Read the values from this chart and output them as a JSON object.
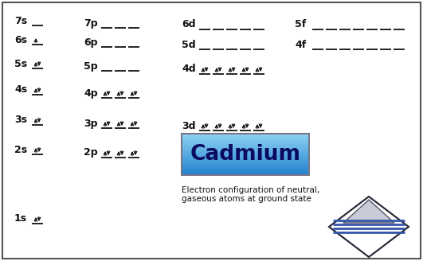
{
  "element_name": "Cadmium",
  "subtitle_line1": "Electron configuration of neutral,",
  "subtitle_line2": "gaseous atoms at ground state",
  "bg_color": "#ffffff",
  "border_color": "#555555",
  "arrow_color": "#111111",
  "s_orbitals": [
    {
      "label": "1s",
      "col": 0,
      "row": 0,
      "filled": 2
    },
    {
      "label": "2s",
      "col": 0,
      "row": 2,
      "filled": 2
    },
    {
      "label": "3s",
      "col": 0,
      "row": 4,
      "filled": 2
    },
    {
      "label": "4s",
      "col": 0,
      "row": 5,
      "filled": 2
    },
    {
      "label": "5s",
      "col": 0,
      "row": 6,
      "filled": 2
    },
    {
      "label": "6s",
      "col": 0,
      "row": 7,
      "filled": 1
    },
    {
      "label": "7s",
      "col": 0,
      "row": 8,
      "filled": 0
    }
  ],
  "p_orbitals": [
    {
      "label": "2p",
      "col": 1,
      "row": 2,
      "filled": 6
    },
    {
      "label": "3p",
      "col": 1,
      "row": 4,
      "filled": 6
    },
    {
      "label": "4p",
      "col": 1,
      "row": 5,
      "filled": 6
    },
    {
      "label": "5p",
      "col": 1,
      "row": 6,
      "filled": 0
    },
    {
      "label": "6p",
      "col": 1,
      "row": 7,
      "filled": 0
    },
    {
      "label": "7p",
      "col": 1,
      "row": 8,
      "filled": 0
    }
  ],
  "d_orbitals": [
    {
      "label": "3d",
      "col": 2,
      "row": 4,
      "filled": 10
    },
    {
      "label": "4d",
      "col": 2,
      "row": 6,
      "filled": 10
    },
    {
      "label": "5d",
      "col": 2,
      "row": 7,
      "filled": 0
    },
    {
      "label": "6d",
      "col": 2,
      "row": 8,
      "filled": 0
    }
  ],
  "f_orbitals": [
    {
      "label": "4f",
      "col": 3,
      "row": 7,
      "filled": 0
    },
    {
      "label": "5f",
      "col": 3,
      "row": 8,
      "filled": 0
    }
  ]
}
